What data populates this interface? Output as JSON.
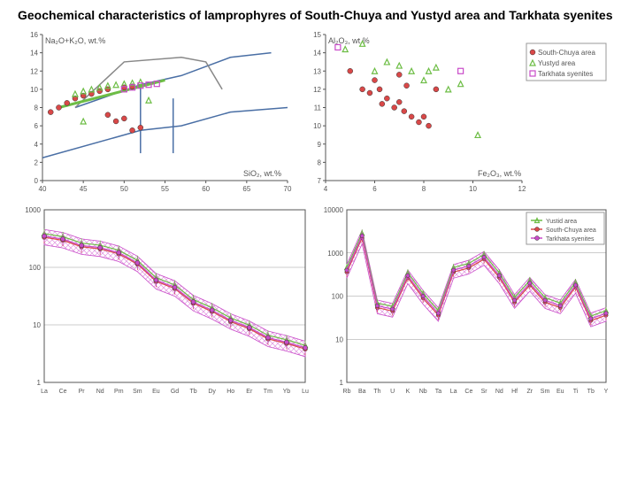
{
  "title": "Geochemical characteristics of lamprophyres of South-Chuya and Yustyd area and Tarkhata syenites",
  "colors": {
    "southChuya": "#d94848",
    "yustyd": "#6dbd45",
    "tarkhata": "#c94bc9",
    "axis": "#888",
    "grid": "#999"
  },
  "legend": {
    "items": [
      {
        "marker": "circle",
        "color": "#d94848",
        "label": "South-Chuya area"
      },
      {
        "marker": "triangle",
        "color": "#6dbd45",
        "label": "Yustyd area"
      },
      {
        "marker": "square",
        "color": "#c94bc9",
        "label": "Tarkhata syenites"
      }
    ]
  },
  "reeLegend": {
    "items": [
      {
        "color": "#6dbd45",
        "label": "Yustid area"
      },
      {
        "color": "#d94848",
        "label": "South-Chuya area"
      },
      {
        "color": "#c94bc9",
        "label": "Tarkhata syenites"
      }
    ]
  },
  "chart1": {
    "xlabel": "SiO₂, wt.%",
    "ylabel": "Na₂O+K₂O, wt.%",
    "xlim": [
      40,
      70
    ],
    "ylim": [
      0,
      16
    ],
    "xticks": [
      40,
      45,
      50,
      55,
      60,
      65,
      70
    ],
    "yticks": [
      0,
      2,
      4,
      6,
      8,
      10,
      12,
      14,
      16
    ],
    "southChuya": [
      [
        42,
        8
      ],
      [
        43,
        8.5
      ],
      [
        44,
        9
      ],
      [
        45,
        9.3
      ],
      [
        46,
        9.5
      ],
      [
        47,
        9.8
      ],
      [
        48,
        7.2
      ],
      [
        49,
        6.5
      ],
      [
        50,
        6.8
      ],
      [
        51,
        5.5
      ],
      [
        52,
        5.8
      ],
      [
        48,
        10
      ],
      [
        50,
        10.2
      ],
      [
        51,
        10.3
      ],
      [
        41,
        7.5
      ]
    ],
    "yustyd": [
      [
        44,
        9.5
      ],
      [
        45,
        9.8
      ],
      [
        46,
        10
      ],
      [
        47,
        10.2
      ],
      [
        48,
        10.4
      ],
      [
        49,
        10.5
      ],
      [
        50,
        10.6
      ],
      [
        51,
        10.7
      ],
      [
        52,
        10.8
      ],
      [
        53,
        8.8
      ],
      [
        45,
        6.5
      ]
    ],
    "tarkhata": [
      [
        51,
        10.2
      ],
      [
        52,
        10.4
      ],
      [
        53,
        10.5
      ],
      [
        50,
        10
      ],
      [
        54,
        10.6
      ]
    ],
    "tasLines": [
      [
        [
          40,
          2.5
        ],
        [
          52,
          5.5
        ],
        [
          57,
          6
        ],
        [
          63,
          7.5
        ],
        [
          70,
          8
        ]
      ],
      [
        [
          44,
          8
        ],
        [
          52,
          10.5
        ],
        [
          57,
          11.5
        ],
        [
          63,
          13.5
        ],
        [
          68,
          14
        ]
      ],
      [
        [
          56,
          3
        ],
        [
          56,
          9
        ]
      ],
      [
        [
          52,
          3
        ],
        [
          52,
          10.5
        ]
      ]
    ],
    "curve": [
      [
        44,
        8
      ],
      [
        50,
        13
      ],
      [
        57,
        13.5
      ],
      [
        60,
        13
      ],
      [
        62,
        10
      ]
    ]
  },
  "chart2": {
    "xlabel": "Fe₂O₃, wt.%",
    "ylabel": "Al₂O₃, wt.%",
    "xlim": [
      4,
      12
    ],
    "ylim": [
      7,
      15
    ],
    "xticks": [
      4,
      6,
      8,
      10,
      12
    ],
    "yticks": [
      7,
      8,
      9,
      10,
      11,
      12,
      13,
      14,
      15
    ],
    "southChuya": [
      [
        5,
        13
      ],
      [
        5.5,
        12
      ],
      [
        6,
        12.5
      ],
      [
        6.2,
        12
      ],
      [
        6.5,
        11.5
      ],
      [
        6.8,
        11
      ],
      [
        7,
        11.3
      ],
      [
        7.2,
        10.8
      ],
      [
        7.5,
        10.5
      ],
      [
        7.8,
        10.2
      ],
      [
        8,
        10.5
      ],
      [
        8.2,
        10
      ],
      [
        8.5,
        12
      ],
      [
        5.8,
        11.8
      ],
      [
        6.3,
        11.2
      ],
      [
        7,
        12.8
      ],
      [
        7.3,
        12.2
      ]
    ],
    "yustyd": [
      [
        4.8,
        14.2
      ],
      [
        5.5,
        14.5
      ],
      [
        6,
        13
      ],
      [
        6.5,
        13.5
      ],
      [
        7,
        13.3
      ],
      [
        7.5,
        13
      ],
      [
        8,
        12.5
      ],
      [
        8.2,
        13
      ],
      [
        8.5,
        13.2
      ],
      [
        9,
        12
      ],
      [
        9.5,
        12.3
      ],
      [
        10.2,
        9.5
      ]
    ],
    "tarkhata": [
      [
        4.5,
        14.3
      ],
      [
        9.5,
        13
      ]
    ]
  },
  "chart3": {
    "elements": [
      "La",
      "Ce",
      "Pr",
      "Nd",
      "Pm",
      "Sm",
      "Eu",
      "Gd",
      "Tb",
      "Dy",
      "Ho",
      "Er",
      "Tm",
      "Yb",
      "Lu"
    ],
    "ylim": [
      1,
      1000
    ],
    "series": {
      "mean": [
        350,
        310,
        240,
        220,
        180,
        120,
        60,
        45,
        25,
        18,
        12,
        9,
        6,
        5,
        4
      ],
      "spread": 0.3
    }
  },
  "chart4": {
    "elements": [
      "Rb",
      "Ba",
      "Th",
      "U",
      "K",
      "Nb",
      "Ta",
      "La",
      "Ce",
      "Sr",
      "Nd",
      "Hf",
      "Zr",
      "Sm",
      "Eu",
      "Ti",
      "Tb",
      "Y"
    ],
    "ylim": [
      1,
      10000
    ],
    "series": {
      "mean": [
        400,
        2500,
        60,
        50,
        300,
        100,
        40,
        400,
        500,
        800,
        300,
        80,
        200,
        80,
        60,
        180,
        30,
        40
      ],
      "spread": 0.35
    }
  }
}
